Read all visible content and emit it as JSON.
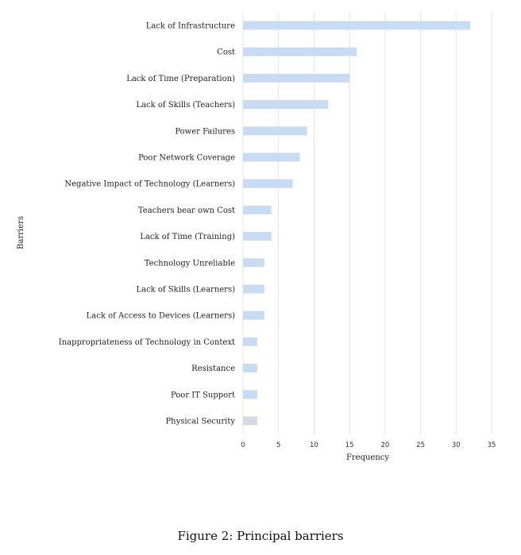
{
  "chart_data": {
    "type": "bar",
    "orientation": "horizontal",
    "categories": [
      "Lack of Infrastructure",
      "Cost",
      "Lack of Time (Preparation)",
      "Lack of Skills (Teachers)",
      "Power Failures",
      "Poor Network Coverage",
      "Negative Impact of Technology (Learners)",
      "Teachers bear own Cost",
      "Lack of Time (Training)",
      "Technology Unreliable",
      "Lack of Skills (Learners)",
      "Lack of Access to Devices (Learners)",
      "Inappropriateness of Technology in Context",
      "Resistance",
      "Poor IT Support",
      "Physical Security"
    ],
    "values": [
      32,
      16,
      15,
      12,
      9,
      8,
      7,
      4,
      4,
      3,
      3,
      3,
      2,
      2,
      2,
      2
    ],
    "xlabel": "Frequency",
    "ylabel": "Barriers",
    "xlim": [
      0,
      35
    ],
    "xticks": [
      0,
      5,
      10,
      15,
      20,
      25,
      30,
      35
    ],
    "grid": true,
    "bar_color": "#c9dbf2",
    "last_bar_color": "#d3d9e2",
    "grid_color": "#e4e4e4"
  },
  "caption": "Figure 2: Principal barriers"
}
